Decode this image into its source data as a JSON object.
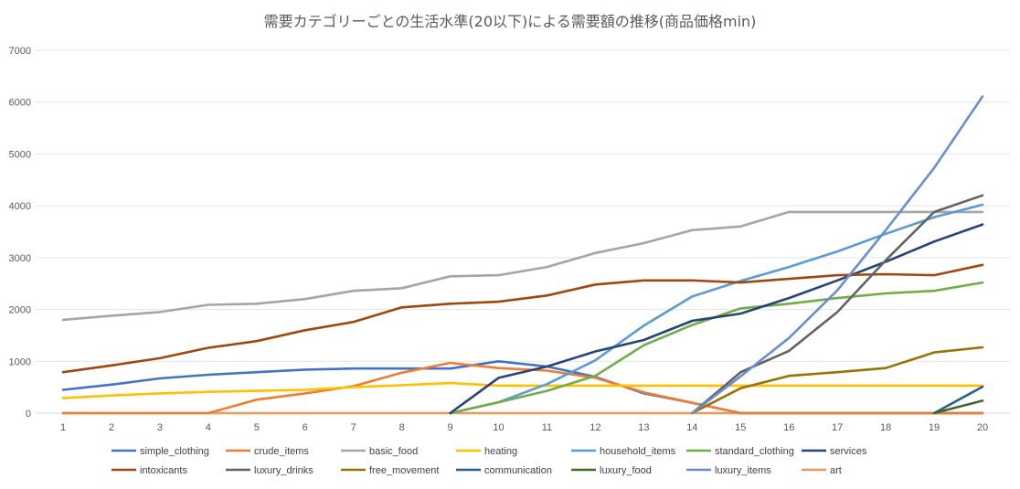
{
  "chart_data": {
    "type": "line",
    "title": "需要カテゴリーごとの生活水準(20以下)による需要額の推移(商品価格min)",
    "xlabel": "",
    "ylabel": "",
    "ylim": [
      0,
      7000
    ],
    "yticks": [
      0,
      1000,
      2000,
      3000,
      4000,
      5000,
      6000,
      7000
    ],
    "categories": [
      1,
      2,
      3,
      4,
      5,
      6,
      7,
      8,
      9,
      10,
      11,
      12,
      13,
      14,
      15,
      16,
      17,
      18,
      19,
      20
    ],
    "grid": true,
    "legend_position": "bottom",
    "series": [
      {
        "name": "simple_clothing",
        "color": "#4472C4",
        "values": [
          450,
          550,
          670,
          740,
          790,
          840,
          860,
          860,
          860,
          1000,
          900,
          700,
          380,
          200,
          0,
          0,
          0,
          0,
          0,
          0
        ]
      },
      {
        "name": "crude_items",
        "color": "#ED7D31",
        "values": [
          0,
          0,
          0,
          0,
          260,
          380,
          520,
          780,
          970,
          870,
          820,
          680,
          400,
          200,
          0,
          0,
          0,
          0,
          0,
          0
        ]
      },
      {
        "name": "basic_food",
        "color": "#A5A5A5",
        "values": [
          1800,
          1880,
          1950,
          2090,
          2110,
          2200,
          2360,
          2410,
          2640,
          2660,
          2820,
          3090,
          3280,
          3530,
          3600,
          3880,
          3880,
          3880,
          3880,
          3880
        ]
      },
      {
        "name": "heating",
        "color": "#FFC000",
        "values": [
          290,
          340,
          380,
          410,
          430,
          450,
          500,
          540,
          580,
          530,
          530,
          530,
          530,
          530,
          530,
          530,
          530,
          530,
          530,
          530
        ]
      },
      {
        "name": "household_items",
        "color": "#5B9BD5",
        "values": [
          null,
          null,
          null,
          null,
          null,
          null,
          null,
          null,
          0,
          210,
          560,
          1020,
          1690,
          2250,
          2550,
          2820,
          3120,
          3460,
          3780,
          4020
        ]
      },
      {
        "name": "standard_clothing",
        "color": "#70AD47",
        "values": [
          null,
          null,
          null,
          null,
          null,
          null,
          null,
          null,
          0,
          210,
          430,
          720,
          1310,
          1700,
          2020,
          2110,
          2220,
          2310,
          2360,
          2520
        ]
      },
      {
        "name": "services",
        "color": "#264478",
        "values": [
          null,
          null,
          null,
          null,
          null,
          null,
          null,
          null,
          0,
          680,
          900,
          1190,
          1410,
          1780,
          1920,
          2220,
          2560,
          2920,
          3310,
          3640
        ]
      },
      {
        "name": "intoxicants",
        "color": "#9E480E",
        "values": [
          790,
          920,
          1060,
          1260,
          1390,
          1600,
          1760,
          2040,
          2110,
          2150,
          2270,
          2480,
          2560,
          2560,
          2520,
          2590,
          2660,
          2680,
          2660,
          2860
        ]
      },
      {
        "name": "luxury_drinks",
        "color": "#636363",
        "values": [
          null,
          null,
          null,
          null,
          null,
          null,
          null,
          null,
          null,
          null,
          null,
          null,
          null,
          0,
          790,
          1200,
          1950,
          2950,
          3880,
          4200
        ]
      },
      {
        "name": "free_movement",
        "color": "#997300",
        "values": [
          null,
          null,
          null,
          null,
          null,
          null,
          null,
          null,
          null,
          null,
          null,
          null,
          null,
          0,
          480,
          720,
          790,
          870,
          1170,
          1270
        ]
      },
      {
        "name": "communication",
        "color": "#255E91",
        "values": [
          null,
          null,
          null,
          null,
          null,
          null,
          null,
          null,
          null,
          null,
          null,
          null,
          null,
          null,
          null,
          null,
          null,
          null,
          0,
          510
        ]
      },
      {
        "name": "luxury_food",
        "color": "#43682B",
        "values": [
          null,
          null,
          null,
          null,
          null,
          null,
          null,
          null,
          null,
          null,
          null,
          null,
          null,
          null,
          null,
          null,
          null,
          null,
          0,
          240
        ]
      },
      {
        "name": "luxury_items",
        "color": "#698ED0",
        "values": [
          null,
          null,
          null,
          null,
          null,
          null,
          null,
          null,
          null,
          null,
          null,
          null,
          null,
          0,
          710,
          1450,
          2370,
          3530,
          4730,
          6110
        ]
      },
      {
        "name": "art",
        "color": "#F1975A",
        "values": [
          0,
          0,
          0,
          0,
          0,
          0,
          0,
          0,
          0,
          0,
          0,
          0,
          0,
          0,
          0,
          0,
          0,
          0,
          0,
          0
        ]
      }
    ]
  }
}
